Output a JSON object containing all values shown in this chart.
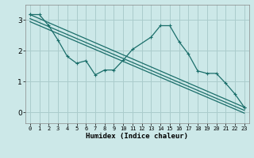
{
  "xlabel": "Humidex (Indice chaleur)",
  "bg_color": "#cce8e8",
  "grid_color": "#aacccc",
  "line_color": "#1a6e6a",
  "xlim": [
    -0.5,
    23.5
  ],
  "ylim": [
    -0.35,
    3.5
  ],
  "xticks": [
    0,
    1,
    2,
    3,
    4,
    5,
    6,
    7,
    8,
    9,
    10,
    11,
    12,
    13,
    14,
    15,
    16,
    17,
    18,
    19,
    20,
    21,
    22,
    23
  ],
  "yticks": [
    0,
    1,
    2,
    3
  ],
  "line1_x": [
    0,
    1,
    2,
    3,
    4,
    5,
    6,
    7,
    8,
    9,
    10,
    11,
    13,
    14,
    15,
    16,
    17,
    18,
    19,
    20,
    21,
    22,
    23
  ],
  "line1_y": [
    3.18,
    3.18,
    2.82,
    2.35,
    1.82,
    1.6,
    1.68,
    1.22,
    1.38,
    1.38,
    1.7,
    2.05,
    2.45,
    2.82,
    2.82,
    2.3,
    1.9,
    1.35,
    1.27,
    1.27,
    0.95,
    0.6,
    0.17
  ],
  "line2_x": [
    0,
    23
  ],
  "line2_y": [
    3.18,
    0.17
  ],
  "line3_x": [
    0,
    23
  ],
  "line3_y": [
    3.05,
    0.07
  ],
  "line4_x": [
    0,
    23
  ],
  "line4_y": [
    2.95,
    -0.02
  ]
}
